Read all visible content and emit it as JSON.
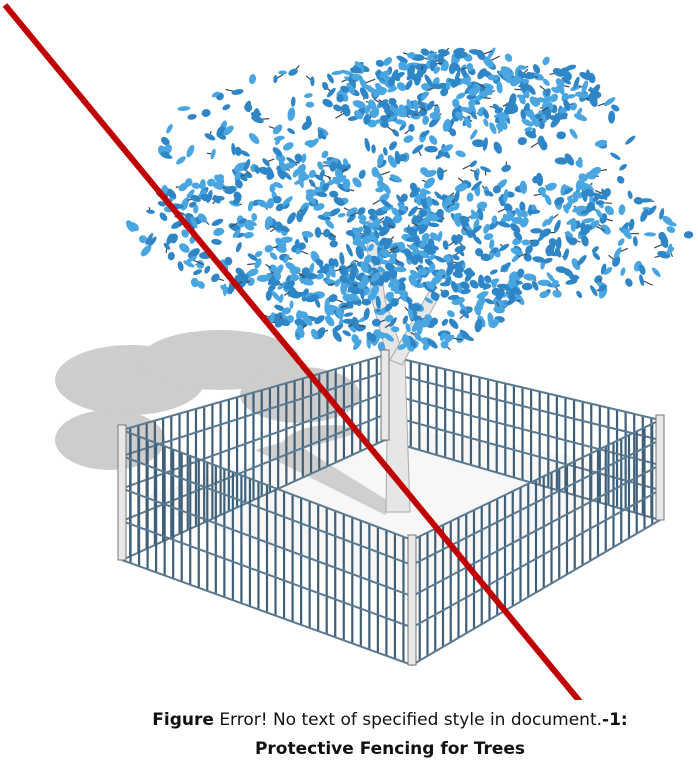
{
  "caption": {
    "label": "Figure",
    "error": "Error! No text of specified style in document.",
    "number": "-1:",
    "title": "Protective Fencing for Trees"
  }
}
